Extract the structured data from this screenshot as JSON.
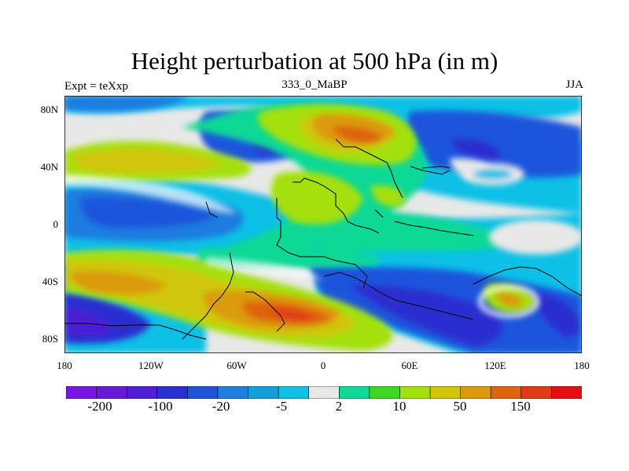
{
  "figure": {
    "title": "Height perturbation at 500 hPa (in m)",
    "left_label": "Expt = teXxp",
    "center_label": "333_0_MaBP",
    "right_label": "JJA"
  },
  "axes": {
    "lat_ticks": [
      "80N",
      "40N",
      "0",
      "40S",
      "80S"
    ],
    "lon_ticks": [
      "180",
      "120W",
      "60W",
      "0",
      "60E",
      "120E",
      "180"
    ]
  },
  "colorbar": {
    "colors": [
      "#7a16e4",
      "#6a18d8",
      "#4e1fd6",
      "#2a2fd0",
      "#1f55dc",
      "#1f7ce0",
      "#129ed8",
      "#10c0e6",
      "#e8e8e8",
      "#10d896",
      "#3ed824",
      "#a4e00c",
      "#d0c60a",
      "#dc9a0a",
      "#de6410",
      "#e23a14",
      "#e60e0e"
    ],
    "labels": [
      "-200",
      "-100",
      "-20",
      "-5",
      "2",
      "10",
      "50",
      "150"
    ]
  },
  "map": {
    "background": "#e8e8e8",
    "features": [
      {
        "name": "north-atlantic-positive-anomaly",
        "color": "#d0c60a"
      },
      {
        "name": "europe-positive-anomaly",
        "color": "#dc9a0a"
      },
      {
        "name": "siberia-negative-anomaly",
        "color": "#1f55dc"
      },
      {
        "name": "southern-pacific-positive-anomaly",
        "color": "#dc9a0a"
      },
      {
        "name": "southern-ocean-negative-anomaly",
        "color": "#2a2fd0"
      }
    ]
  }
}
